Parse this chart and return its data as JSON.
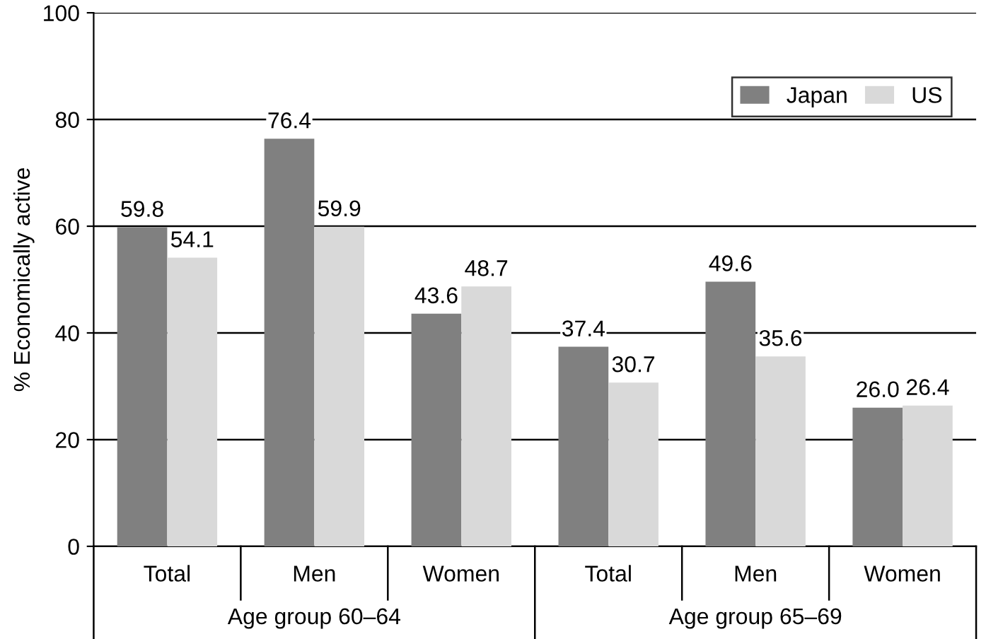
{
  "chart_data": {
    "type": "bar",
    "ylabel": "% Economically active",
    "categories": [
      "Total",
      "Men",
      "Women",
      "Total",
      "Men",
      "Women"
    ],
    "series": [
      {
        "name": "Japan",
        "color": "#808080",
        "values": [
          59.8,
          76.4,
          43.6,
          37.4,
          49.6,
          26.0
        ],
        "value_labels": [
          "59.8",
          "76.4",
          "43.6",
          "37.4",
          "49.6",
          "26.0"
        ]
      },
      {
        "name": "US",
        "color": "#d9d9d9",
        "values": [
          54.1,
          59.9,
          48.7,
          30.7,
          35.6,
          26.4
        ],
        "value_labels": [
          "54.1",
          "59.9",
          "48.7",
          "30.7",
          "35.6",
          "26.4"
        ]
      }
    ],
    "annotations": [
      "Age group 60–64",
      "Age group 65–69"
    ],
    "ylim": [
      0,
      100
    ],
    "yticks": [
      0,
      20,
      40,
      60,
      80,
      100
    ],
    "grid": "y",
    "legend": "top right"
  }
}
